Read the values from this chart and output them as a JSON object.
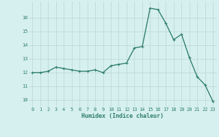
{
  "x": [
    0,
    1,
    2,
    3,
    4,
    5,
    6,
    7,
    8,
    9,
    10,
    11,
    12,
    13,
    14,
    15,
    16,
    17,
    18,
    19,
    20,
    21,
    22,
    23
  ],
  "y": [
    12.0,
    12.0,
    12.1,
    12.4,
    12.3,
    12.2,
    12.1,
    12.1,
    12.2,
    12.0,
    12.5,
    12.6,
    12.7,
    13.8,
    13.9,
    16.7,
    16.6,
    15.6,
    14.4,
    14.8,
    13.1,
    11.7,
    11.1,
    9.9
  ],
  "xlabel": "Humidex (Indice chaleur)",
  "ylim": [
    9.5,
    17.2
  ],
  "xlim": [
    -0.5,
    23.5
  ],
  "yticks": [
    10,
    11,
    12,
    13,
    14,
    15,
    16
  ],
  "xticks": [
    0,
    1,
    2,
    3,
    4,
    5,
    6,
    7,
    8,
    9,
    10,
    11,
    12,
    13,
    14,
    15,
    16,
    17,
    18,
    19,
    20,
    21,
    22,
    23
  ],
  "line_color": "#2e7d6e",
  "bg_color": "#d6f0ef",
  "grid_color": "#b8d4d4",
  "tick_color": "#2e7d6e",
  "marker": "+",
  "linewidth": 1.0,
  "markersize": 3.5,
  "xlabel_fontsize": 6.0,
  "tick_fontsize": 5.0
}
